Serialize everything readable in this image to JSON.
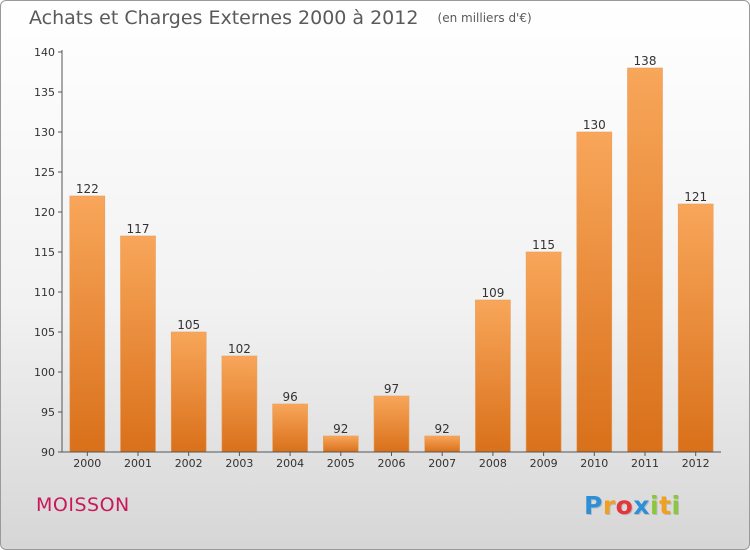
{
  "header": {
    "title": "Achats et Charges Externes 2000 à 2012",
    "unit": "(en milliers d'€)"
  },
  "commune": "MOISSON",
  "logo": {
    "text": "Proxiti",
    "letters": [
      {
        "ch": "P",
        "color": "#2d8fd6"
      },
      {
        "ch": "r",
        "color": "#f0a020"
      },
      {
        "ch": "o",
        "color": "#e2363a"
      },
      {
        "ch": "x",
        "color": "#2d8fd6"
      },
      {
        "ch": "i",
        "color": "#8cc63f"
      },
      {
        "ch": "t",
        "color": "#f0a020"
      },
      {
        "ch": "i",
        "color": "#8cc63f"
      }
    ]
  },
  "chart_data": {
    "type": "bar",
    "title": "Achats et Charges Externes 2000 à 2012",
    "subtitle": "(en milliers d'€)",
    "categories": [
      "2000",
      "2001",
      "2002",
      "2003",
      "2004",
      "2005",
      "2006",
      "2007",
      "2008",
      "2009",
      "2010",
      "2011",
      "2012"
    ],
    "values": [
      122,
      117,
      105,
      102,
      96,
      92,
      97,
      92,
      109,
      115,
      130,
      138,
      121
    ],
    "ylim": [
      90,
      140
    ],
    "yticks": [
      90,
      95,
      100,
      105,
      110,
      115,
      120,
      125,
      130,
      135,
      140
    ],
    "grid": false,
    "data_labels": true,
    "bar_color": "#f28c30"
  }
}
